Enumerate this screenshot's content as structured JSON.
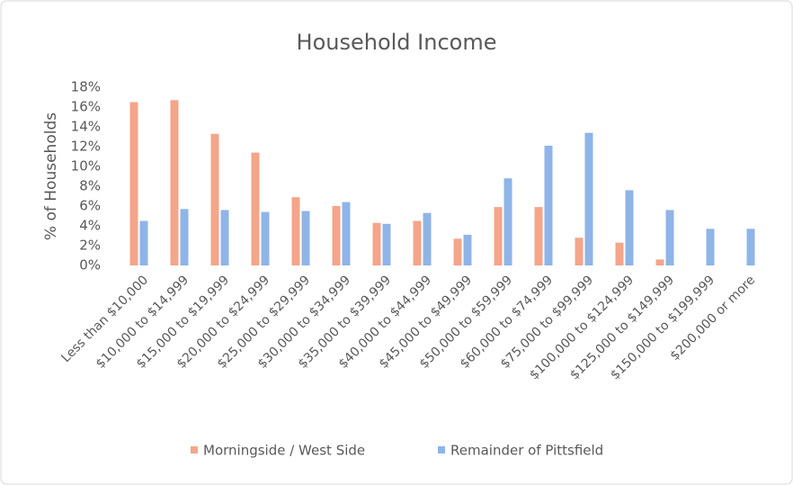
{
  "chart_data": {
    "type": "bar",
    "title": "Household Income",
    "y_label": "% of Households",
    "categories": [
      "Less than $10,000",
      "$10,000 to $14,999",
      "$15,000 to $19,999",
      "$20,000 to $24,999",
      "$25,000 to $29,999",
      "$30,000 to $34,999",
      "$35,000 to $39,999",
      "$40,000 to $44,999",
      "$45,000 to $49,999",
      "$50,000 to $59,999",
      "$60,000 to $74,999",
      "$75,000 to $99,999",
      "$100,000 to $124,999",
      "$125,000 to $149,999",
      "$150,000 to $199,999",
      "$200,000 or more"
    ],
    "series": [
      {
        "name": "Morningside / West Side",
        "color": "#f4a58a",
        "values": [
          16.5,
          16.7,
          13.3,
          11.4,
          6.9,
          6.0,
          4.3,
          4.5,
          2.7,
          5.9,
          5.9,
          2.8,
          2.3,
          0.6,
          0,
          0
        ]
      },
      {
        "name": "Remainder of Pittsfield",
        "color": "#8fb4e8",
        "values": [
          4.5,
          5.7,
          5.6,
          5.4,
          5.5,
          6.4,
          4.2,
          5.3,
          3.1,
          8.8,
          12.1,
          13.4,
          7.6,
          5.6,
          3.7,
          3.7
        ]
      }
    ],
    "ylim": [
      0,
      18
    ],
    "yticks": [
      {
        "value": 0,
        "label": "0%"
      },
      {
        "value": 2,
        "label": "2%"
      },
      {
        "value": 4,
        "label": "4%"
      },
      {
        "value": 6,
        "label": "6%"
      },
      {
        "value": 8,
        "label": "8%"
      },
      {
        "value": 10,
        "label": "10%"
      },
      {
        "value": 12,
        "label": "12%"
      },
      {
        "value": 14,
        "label": "14%"
      },
      {
        "value": 16,
        "label": "16%"
      },
      {
        "value": 18,
        "label": "18%"
      }
    ],
    "grid": false,
    "legend": "bottom"
  }
}
